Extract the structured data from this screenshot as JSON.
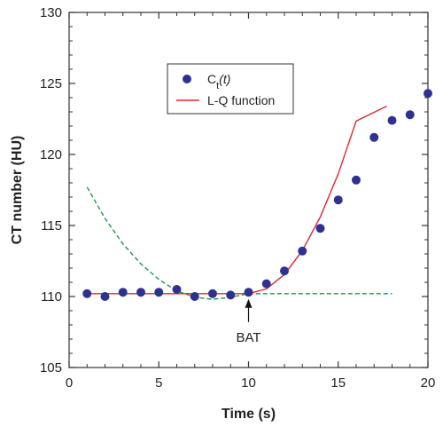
{
  "chart_data": {
    "type": "scatter",
    "title": "",
    "xlabel": "Time (s)",
    "ylabel": "CT number (HU)",
    "xlim": [
      0,
      20
    ],
    "ylim": [
      105,
      130
    ],
    "xticks": [
      0,
      5,
      10,
      15,
      20
    ],
    "yticks": [
      105,
      110,
      115,
      120,
      125,
      130
    ],
    "grid": false,
    "legend_position": "upper-center",
    "colors": {
      "points": "#2e3192",
      "fit": "#e0282e",
      "baseline": "#1a9a4a",
      "axis": "#333333"
    },
    "series": [
      {
        "name": "Ct(t)",
        "legend_label": {
          "main": "C",
          "sub": "t",
          "arg": "(t)"
        },
        "kind": "markers",
        "x": [
          1,
          2,
          3,
          4,
          5,
          6,
          7,
          8,
          9,
          10,
          11,
          12,
          13,
          14,
          15,
          16,
          17,
          18,
          19,
          20
        ],
        "y": [
          110.2,
          110.0,
          110.3,
          110.3,
          110.3,
          110.5,
          110.0,
          110.2,
          110.1,
          110.3,
          110.9,
          111.8,
          113.2,
          114.8,
          116.8,
          118.2,
          121.2,
          122.4,
          122.8,
          124.3
        ]
      },
      {
        "name": "L-Q function",
        "legend_label": {
          "main": "L-Q function"
        },
        "kind": "line",
        "x": [
          1,
          2,
          3,
          4,
          5,
          6,
          7,
          8,
          9,
          10,
          11,
          12,
          13,
          14,
          15,
          16,
          17,
          18
        ],
        "y": [
          110.2,
          110.2,
          110.2,
          110.2,
          110.2,
          110.2,
          110.2,
          110.2,
          110.2,
          110.2,
          110.54,
          111.55,
          113.24,
          115.6,
          118.64,
          122.35,
          124.0,
          123.4
        ]
      },
      {
        "name": "",
        "kind": "dashed-line",
        "x": [
          1,
          2,
          3,
          4,
          5,
          6,
          7,
          8,
          9,
          10,
          12,
          14,
          16,
          18
        ],
        "y": [
          117.7,
          115.5,
          113.7,
          112.3,
          111.2,
          110.4,
          109.95,
          109.8,
          109.95,
          110.2,
          110.2,
          110.2,
          110.2,
          110.2
        ]
      }
    ],
    "annotations": [
      {
        "text": "BAT",
        "x": 10,
        "y": 110.2
      }
    ]
  }
}
